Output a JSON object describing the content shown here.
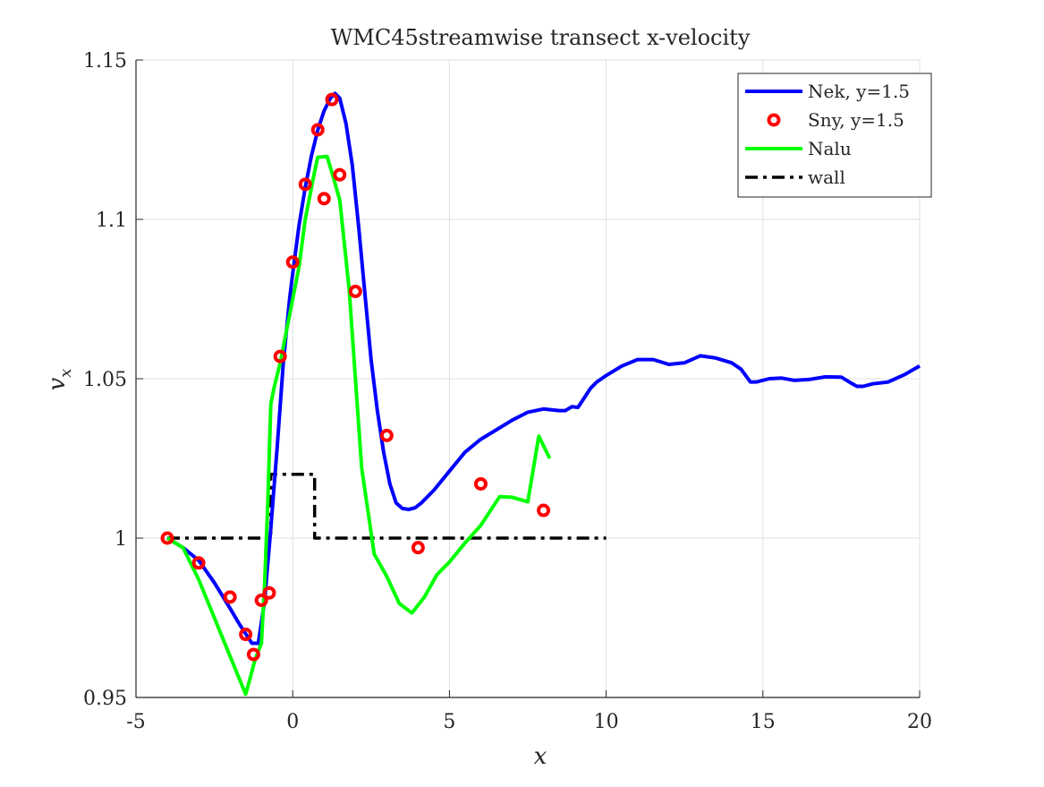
{
  "chart_data": {
    "type": "line",
    "title": "WMC45streamwise transect x-velocity",
    "xlabel": "x",
    "ylabel": "v",
    "ylabel_subscript": "x",
    "xlim": [
      -5,
      20
    ],
    "ylim": [
      0.95,
      1.15
    ],
    "xticks": [
      -5,
      0,
      5,
      10,
      15,
      20
    ],
    "yticks": [
      0.95,
      1,
      1.05,
      1.1,
      1.15
    ],
    "xtick_labels": [
      "-5",
      "0",
      "5",
      "10",
      "15",
      "20"
    ],
    "ytick_labels": [
      "0.95",
      "1",
      "1.05",
      "1.1",
      "1.15"
    ],
    "grid": true,
    "legend_position": "top-right",
    "series": [
      {
        "name": "Nek, y=1.5",
        "style": "line",
        "color": "#0000ff",
        "x": [
          -4,
          -3.5,
          -3,
          -2.5,
          -2,
          -1.7,
          -1.5,
          -1.3,
          -1.1,
          -0.9,
          -0.7,
          -0.5,
          -0.3,
          -0.1,
          0,
          0.2,
          0.4,
          0.6,
          0.8,
          1.0,
          1.2,
          1.35,
          1.5,
          1.7,
          1.9,
          2.1,
          2.3,
          2.5,
          2.7,
          2.9,
          3.1,
          3.3,
          3.5,
          3.7,
          3.9,
          4.1,
          4.5,
          5,
          5.5,
          6,
          6.5,
          7,
          7.5,
          8,
          8.5,
          8.7,
          8.9,
          9.1,
          9.3,
          9.5,
          9.7,
          10,
          10.5,
          11,
          11.5,
          12,
          12.5,
          13,
          13.5,
          14,
          14.3,
          14.6,
          14.8,
          15.2,
          15.6,
          16,
          16.5,
          17,
          17.5,
          17.8,
          18,
          18.2,
          18.5,
          19,
          19.5,
          20
        ],
        "y": [
          1.0,
          0.997,
          0.993,
          0.986,
          0.978,
          0.973,
          0.97,
          0.967,
          0.967,
          0.98,
          1.003,
          1.028,
          1.055,
          1.075,
          1.083,
          1.098,
          1.11,
          1.12,
          1.128,
          1.134,
          1.138,
          1.1395,
          1.138,
          1.13,
          1.117,
          1.098,
          1.077,
          1.056,
          1.04,
          1.027,
          1.017,
          1.011,
          1.0093,
          1.009,
          1.0095,
          1.011,
          1.015,
          1.021,
          1.027,
          1.031,
          1.034,
          1.037,
          1.0395,
          1.0405,
          1.04,
          1.04,
          1.0412,
          1.041,
          1.044,
          1.047,
          1.049,
          1.051,
          1.054,
          1.056,
          1.056,
          1.0545,
          1.055,
          1.0572,
          1.0565,
          1.055,
          1.053,
          1.049,
          1.049,
          1.05,
          1.0502,
          1.0495,
          1.0498,
          1.0506,
          1.0505,
          1.0487,
          1.0476,
          1.0476,
          1.0484,
          1.049,
          1.0512,
          1.054
        ]
      },
      {
        "name": "Sny, y=1.5",
        "style": "marker",
        "color": "#ff0000",
        "x": [
          -4,
          -3,
          -2,
          -1.5,
          -1.25,
          -1,
          -0.75,
          -0.4,
          0,
          0.4,
          0.8,
          1.0,
          1.25,
          1.5,
          2,
          3,
          4,
          6,
          8
        ],
        "y": [
          1.0,
          0.9922,
          0.9815,
          0.9698,
          0.9635,
          0.9805,
          0.9828,
          1.057,
          1.0866,
          1.111,
          1.1281,
          1.1065,
          1.1376,
          1.114,
          1.0774,
          1.0322,
          0.997,
          1.017,
          1.0087
        ]
      },
      {
        "name": "Nalu",
        "style": "line",
        "color": "#00ff00",
        "x": [
          -4,
          -3.5,
          -3,
          -2.5,
          -2,
          -1.5,
          -1.4,
          -1.2,
          -1.0,
          -0.9,
          -0.8,
          -0.7,
          -0.6,
          -0.4,
          -0.2,
          0,
          0.2,
          0.4,
          0.6,
          0.7,
          0.8,
          1.1,
          1.3,
          1.5,
          1.8,
          2.2,
          2.6,
          3.0,
          3.4,
          3.8,
          4.2,
          4.6,
          5.0,
          5.5,
          6.0,
          6.3,
          6.6,
          7.0,
          7.5,
          7.85,
          8.2
        ],
        "y": [
          1.0,
          0.997,
          0.987,
          0.975,
          0.963,
          0.951,
          0.9545,
          0.962,
          0.967,
          0.985,
          1.01,
          1.042,
          1.047,
          1.055,
          1.065,
          1.075,
          1.085,
          1.1,
          1.11,
          1.115,
          1.1195,
          1.1197,
          1.113,
          1.106,
          1.078,
          1.022,
          0.995,
          0.988,
          0.9795,
          0.9765,
          0.9815,
          0.9885,
          0.9925,
          0.9985,
          1.004,
          1.0085,
          1.013,
          1.0128,
          1.0114,
          1.032,
          1.025
        ]
      },
      {
        "name": "wall",
        "style": "dashdot",
        "color": "#000000",
        "x": [
          -4,
          -0.7,
          -0.7,
          0.7,
          0.7,
          10
        ],
        "y": [
          1.0,
          1.0,
          1.02,
          1.02,
          1.0,
          1.0
        ]
      }
    ]
  }
}
